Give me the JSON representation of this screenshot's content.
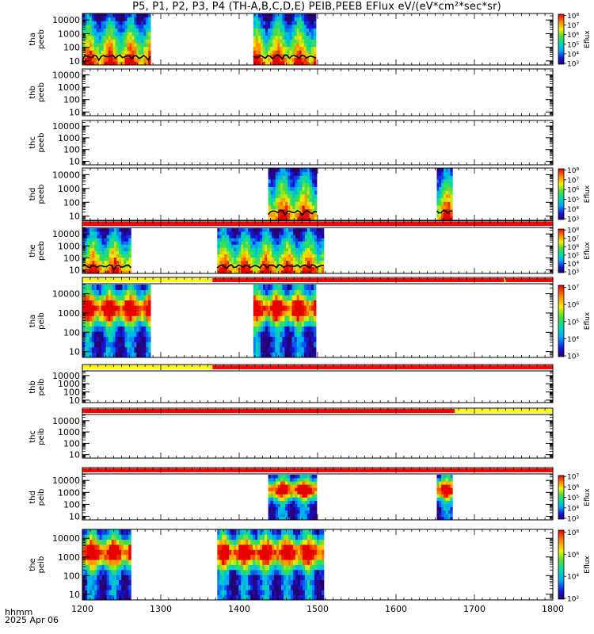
{
  "chart_data": {
    "type": "heatmap",
    "title": "P5, P1, P2, P3, P4 (TH-A,B,C,D,E) PEIB,PEEB EFlux eV/(eV*cm²*sec*sr)",
    "x_axis": {
      "range": [
        1200,
        1800
      ],
      "ticks": [
        "1200",
        "1300",
        "1400",
        "1500",
        "1600",
        "1700",
        "1800"
      ],
      "label": "hhmm",
      "date": "2025 Apr 06"
    },
    "y_scale": "log",
    "y_range": [
      5,
      30000
    ],
    "y_ticks": [
      "10",
      "100",
      "1000",
      "10000"
    ],
    "colorscale": "rainbow",
    "colorbar_label": "Eflux",
    "panels": [
      {
        "probe": "tha",
        "species": "peeb",
        "label_lines": [
          "tha",
          "peeb"
        ],
        "colorbar_ticks": [
          "10³",
          "10⁴",
          "10⁵",
          "10⁶",
          "10⁷",
          "10⁸"
        ],
        "data_intervals": [
          [
            1200,
            1287
          ],
          [
            1418,
            1498
          ]
        ],
        "overlay_line": true,
        "status_bar": null
      },
      {
        "probe": "thb",
        "species": "peeb",
        "label_lines": [
          "thb",
          "peeb"
        ],
        "colorbar_ticks": [],
        "data_intervals": [],
        "overlay_line": false,
        "status_bar": null
      },
      {
        "probe": "thc",
        "species": "peeb",
        "label_lines": [
          "thc",
          "peeb"
        ],
        "colorbar_ticks": [],
        "data_intervals": [],
        "overlay_line": false,
        "status_bar": null
      },
      {
        "probe": "thd",
        "species": "peeb",
        "label_lines": [
          "thd",
          "peeb"
        ],
        "colorbar_ticks": [
          "10³",
          "10⁴",
          "10⁵",
          "10⁶",
          "10⁷",
          "10⁸"
        ],
        "data_intervals": [
          [
            1437,
            1499
          ],
          [
            1652,
            1672
          ]
        ],
        "overlay_line": true,
        "status_bar": null
      },
      {
        "probe": "the",
        "species": "peeb",
        "label_lines": [
          "the",
          "peeb"
        ],
        "colorbar_ticks": [
          "10³",
          "10⁴",
          "10⁵",
          "10⁶",
          "10⁷",
          "10⁸"
        ],
        "data_intervals": [
          [
            1200,
            1262
          ],
          [
            1372,
            1508
          ]
        ],
        "overlay_line": true,
        "status_bar": {
          "segments": [
            [
              1200,
              1800,
              "red"
            ]
          ]
        }
      },
      {
        "probe": "tha",
        "species": "peib",
        "label_lines": [
          "tha",
          "peib"
        ],
        "colorbar_ticks": [
          "10³",
          "10⁴",
          "10⁵",
          "10⁶",
          "10⁷"
        ],
        "data_intervals": [
          [
            1200,
            1287
          ],
          [
            1418,
            1498
          ]
        ],
        "overlay_line": false,
        "status_bar": {
          "segments": [
            [
              1200,
              1366,
              "yellow"
            ],
            [
              1366,
              1738,
              "red"
            ],
            [
              1738,
              1740,
              "yellow"
            ],
            [
              1740,
              1800,
              "red"
            ]
          ]
        }
      },
      {
        "probe": "thb",
        "species": "peib",
        "label_lines": [
          "thb",
          "peib"
        ],
        "colorbar_ticks": [],
        "data_intervals": [],
        "overlay_line": false,
        "status_bar": {
          "segments": [
            [
              1200,
              1366,
              "yellow"
            ],
            [
              1366,
              1800,
              "red"
            ]
          ]
        }
      },
      {
        "probe": "thc",
        "species": "peib",
        "label_lines": [
          "thc",
          "peib"
        ],
        "colorbar_ticks": [],
        "data_intervals": [],
        "overlay_line": false,
        "status_bar": {
          "segments": [
            [
              1200,
              1675,
              "red"
            ],
            [
              1675,
              1800,
              "yellow"
            ]
          ]
        }
      },
      {
        "probe": "thd",
        "species": "peib",
        "label_lines": [
          "thd",
          "peib"
        ],
        "colorbar_ticks": [
          "10³",
          "10⁴",
          "10⁵",
          "10⁶",
          "10⁷"
        ],
        "data_intervals": [
          [
            1437,
            1499
          ],
          [
            1652,
            1672
          ]
        ],
        "overlay_line": false,
        "status_bar": {
          "segments": [
            [
              1200,
              1800,
              "red"
            ]
          ]
        }
      },
      {
        "probe": "the",
        "species": "peib",
        "label_lines": [
          "the",
          "peib"
        ],
        "colorbar_ticks": [
          "10²",
          "10⁴",
          "10⁶",
          "10⁸"
        ],
        "data_intervals": [
          [
            1200,
            1262
          ],
          [
            1372,
            1508
          ]
        ],
        "overlay_line": false,
        "status_bar": null
      }
    ]
  }
}
